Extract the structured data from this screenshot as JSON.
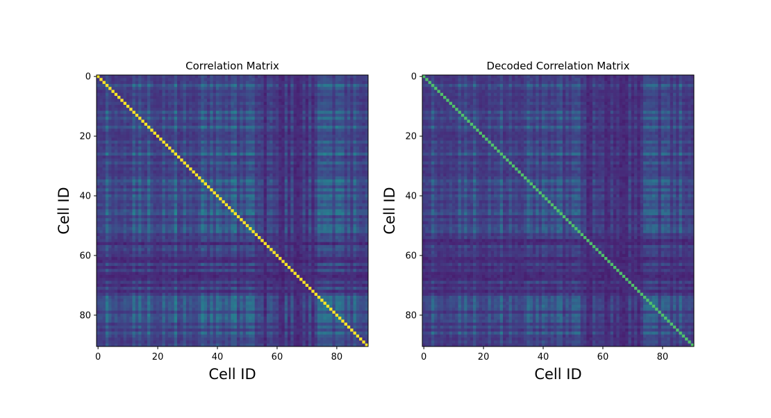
{
  "chart_data": [
    {
      "type": "heatmap",
      "title": "Correlation Matrix",
      "xlabel": "Cell ID",
      "ylabel": "Cell ID",
      "size": 91,
      "xticks": [
        0,
        20,
        40,
        60,
        80
      ],
      "yticks": [
        0,
        20,
        40,
        60,
        80
      ],
      "xlim": [
        0,
        90
      ],
      "ylim": [
        90,
        0
      ],
      "colormap": "viridis",
      "diagonal_value": 1.0,
      "grid": false,
      "band_cells": [
        3,
        12,
        14,
        17,
        22,
        26,
        29,
        35,
        36,
        38,
        40,
        41,
        43,
        45,
        46,
        48,
        50,
        51,
        52,
        74,
        75,
        76,
        77,
        78,
        80,
        81,
        82,
        84,
        86
      ],
      "dark_cells": [
        56,
        61,
        62,
        64,
        66,
        67,
        68,
        70,
        72
      ],
      "typical_offdiag_range": [
        0.1,
        0.45
      ]
    },
    {
      "type": "heatmap",
      "title": "Decoded Correlation Matrix",
      "xlabel": "Cell ID",
      "ylabel": "Cell ID",
      "size": 91,
      "xticks": [
        0,
        20,
        40,
        60,
        80
      ],
      "yticks": [
        0,
        20,
        40,
        60,
        80
      ],
      "xlim": [
        0,
        90
      ],
      "ylim": [
        90,
        0
      ],
      "colormap": "viridis",
      "diagonal_value": 0.72,
      "grid": false,
      "band_cells": [
        3,
        12,
        14,
        17,
        22,
        26,
        29,
        35,
        36,
        38,
        40,
        41,
        43,
        45,
        46,
        48,
        50,
        51,
        52,
        74,
        75,
        76,
        77,
        78,
        80,
        81,
        82,
        84,
        86
      ],
      "dark_cells": [
        55,
        56,
        61,
        62,
        64,
        66,
        67,
        68,
        70,
        72
      ],
      "typical_offdiag_range": [
        0.1,
        0.4
      ]
    }
  ]
}
